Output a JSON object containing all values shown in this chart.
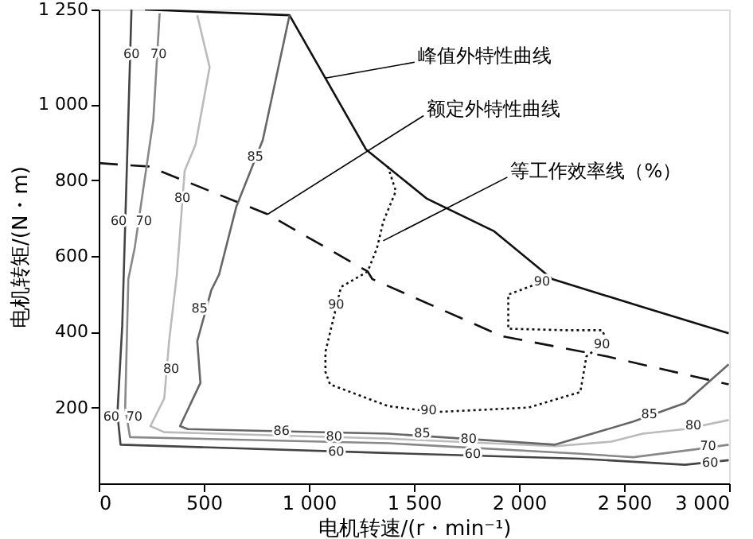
{
  "chart_data": {
    "type": "line",
    "xlabel": "电机转速/(r・min⁻¹)",
    "ylabel": "电机转矩/(N・m)",
    "xlim": [
      0,
      3000
    ],
    "ylim": [
      0,
      1250
    ],
    "xticks": [
      0,
      500,
      {
        "value": 1000,
        "label": "1 000"
      },
      {
        "value": 1500,
        "label": "1 500"
      },
      {
        "value": 2000,
        "label": "2 000"
      },
      {
        "value": 2500,
        "label": "2 500"
      },
      {
        "value": 3000,
        "label": "3 000"
      }
    ],
    "yticks": [
      200,
      400,
      600,
      800,
      {
        "value": 1000,
        "label": "1 000"
      },
      {
        "value": 1250,
        "label": "1 250"
      }
    ],
    "grid": false,
    "marker": "none",
    "series": [
      {
        "color": "#111111",
        "line_style": "solid",
        "x": [
          220,
          908,
          1272,
          1562,
          1882,
          2158,
          2589,
          2998
        ],
        "values": [
          1250,
          1235,
          881,
          751,
          665,
          539,
          465,
          396
        ]
      },
      {
        "color": "#111111",
        "line_style": "dashed",
        "x": [
          0,
          97,
          238,
          804,
          1280,
          1302,
          1920,
          2418,
          2998
        ],
        "values": [
          845,
          841,
          836,
          710,
          559,
          539,
          388,
          335,
          261
        ]
      },
      {
        "color": "#444444",
        "line_style": "solid",
        "x": [
          156,
          112,
          89,
          104,
          1376,
          2292,
          2790,
          2998
        ],
        "values": [
          1250,
          416,
          184,
          102,
          80,
          65,
          49,
          61
        ]
      },
      {
        "color": "#888888",
        "line_style": "solid",
        "x": [
          290,
          260,
          171,
          141,
          126,
          149,
          1376,
          2292,
          2544,
          2842,
          2998
        ],
        "values": [
          1240,
          959,
          620,
          539,
          200,
          122,
          106,
          78,
          69,
          90,
          102
        ]
      },
      {
        "color": "#bbbbbb",
        "line_style": "solid",
        "x": [
          469,
          528,
          461,
          409,
          372,
          335,
          312,
          246,
          312,
          1376,
          2172,
          2440,
          2589,
          2790,
          2998
        ],
        "values": [
          1235,
          1098,
          894,
          824,
          551,
          375,
          224,
          151,
          135,
          118,
          98,
          110,
          131,
          143,
          167
        ]
      },
      {
        "color": "#666666",
        "line_style": "solid",
        "x": [
          908,
          781,
          655,
          573,
          536,
          469,
          484,
          387,
          424,
          1376,
          2172,
          2544,
          2790,
          2998
        ],
        "values": [
          1235,
          906,
          730,
          551,
          510,
          375,
          265,
          151,
          143,
          131,
          102,
          163,
          212,
          314
        ]
      },
      {
        "color": "#111111",
        "line_style": "dotted",
        "x": [
          1376,
          1414,
          1354,
          1324,
          1280,
          1153,
          1079,
          1079,
          1101,
          1376,
          1600,
          2046,
          2292,
          2321,
          2418,
          2396,
          2217,
          1949,
          1949,
          2046,
          2143
        ],
        "values": [
          836,
          771,
          690,
          620,
          559,
          518,
          347,
          294,
          261,
          204,
          188,
          200,
          241,
          335,
          375,
          404,
          404,
          408,
          498,
          518,
          539
        ]
      }
    ],
    "annotations": [
      {
        "text": "峰值外特性曲线",
        "x": 1079,
        "y": 1069
      },
      {
        "text": "额定外特性曲线",
        "x": 804,
        "y": 710
      },
      {
        "text": "等工作效率线（%）",
        "x": 1354,
        "y": 640
      },
      {
        "text": "60",
        "x": 156,
        "y": 1130
      },
      {
        "text": "70",
        "x": 285,
        "y": 1130
      },
      {
        "text": "60",
        "x": 95,
        "y": 690
      },
      {
        "text": "70",
        "x": 215,
        "y": 690
      },
      {
        "text": "80",
        "x": 398,
        "y": 750
      },
      {
        "text": "85",
        "x": 745,
        "y": 860
      },
      {
        "text": "85",
        "x": 480,
        "y": 460
      },
      {
        "text": "80",
        "x": 345,
        "y": 300
      },
      {
        "text": "60",
        "x": 60,
        "y": 175
      },
      {
        "text": "70",
        "x": 170,
        "y": 175
      },
      {
        "text": "86",
        "x": 870,
        "y": 137
      },
      {
        "text": "80",
        "x": 1120,
        "y": 122
      },
      {
        "text": "60",
        "x": 1130,
        "y": 82
      },
      {
        "text": "85",
        "x": 1540,
        "y": 131
      },
      {
        "text": "80",
        "x": 1760,
        "y": 115
      },
      {
        "text": "60",
        "x": 1780,
        "y": 75
      },
      {
        "text": "85",
        "x": 2620,
        "y": 180
      },
      {
        "text": "80",
        "x": 2830,
        "y": 150
      },
      {
        "text": "70",
        "x": 2900,
        "y": 97
      },
      {
        "text": "60",
        "x": 2910,
        "y": 52
      },
      {
        "text": "90",
        "x": 1130,
        "y": 470
      },
      {
        "text": "90",
        "x": 1570,
        "y": 190
      },
      {
        "text": "90",
        "x": 2395,
        "y": 365
      },
      {
        "text": "90",
        "x": 2110,
        "y": 530
      }
    ]
  }
}
